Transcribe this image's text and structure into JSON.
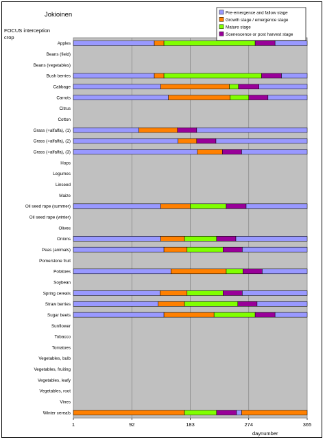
{
  "chart_data": {
    "type": "bar",
    "orientation": "horizontal",
    "stacked": true,
    "title": "Jokioinen",
    "ylabel": "FOCUS interception\ncrop",
    "xlabel": "daynumber",
    "xlim": [
      1,
      365
    ],
    "xticks": [
      1,
      92,
      183,
      274,
      365
    ],
    "grid": "vertical",
    "legend_position": "top-right",
    "series": [
      {
        "name": "Pre-emergence and fallow stage",
        "color": "#9999ff"
      },
      {
        "name": "Growth stage / emergence stage",
        "color": "#ff8000"
      },
      {
        "name": "Mature stage",
        "color": "#80ff00"
      },
      {
        "name": "Scenescence or post harvest stage",
        "color": "#990099"
      }
    ],
    "categories": [
      "Apples",
      "Beans (field)",
      "Beans (vegetables)",
      "Bush berries",
      "Cabbage",
      "Carrots",
      "Citrus",
      "Cotton",
      "Grass (+alfalfa), (1)",
      "Grass (+alfalfa), (2)",
      "Grass (+alfalfa), (3)",
      "Hops",
      "Legumes",
      "Linseed",
      "Maize",
      "Oil seed rape (summer)",
      "Oil seed rape (winter)",
      "Olives",
      "Onions",
      "Peas (animals)",
      "Pome/stone fruit",
      "Potatoes",
      "Soybean",
      "Spring cereals",
      "Straw berries",
      "Sugar beets",
      "Sunflower",
      "Tobacco",
      "Tomatoes",
      "Vegetables, bulb",
      "Vegetables, fruiting",
      "Vegetables, leafy",
      "Vegetables, root",
      "Vines",
      "Winter cereals"
    ],
    "stages": [
      {
        "crop": "Apples",
        "segments": [
          [
            1,
            "pre"
          ],
          [
            127,
            "growth"
          ],
          [
            142,
            "mature"
          ],
          [
            284,
            "senescence"
          ],
          [
            315,
            "pre"
          ],
          [
            365,
            "end"
          ]
        ]
      },
      {
        "crop": "Bush berries",
        "segments": [
          [
            1,
            "pre"
          ],
          [
            127,
            "growth"
          ],
          [
            142,
            "mature"
          ],
          [
            294,
            "senescence"
          ],
          [
            325,
            "pre"
          ],
          [
            365,
            "end"
          ]
        ]
      },
      {
        "crop": "Cabbage",
        "segments": [
          [
            1,
            "pre"
          ],
          [
            137,
            "growth"
          ],
          [
            244,
            "mature"
          ],
          [
            258,
            "senescence"
          ],
          [
            290,
            "pre"
          ],
          [
            365,
            "end"
          ]
        ]
      },
      {
        "crop": "Carrots",
        "segments": [
          [
            1,
            "pre"
          ],
          [
            149,
            "growth"
          ],
          [
            245,
            "mature"
          ],
          [
            274,
            "senescence"
          ],
          [
            304,
            "pre"
          ],
          [
            365,
            "end"
          ]
        ]
      },
      {
        "crop": "Grass (+alfalfa), (1)",
        "segments": [
          [
            1,
            "pre"
          ],
          [
            103,
            "growth"
          ],
          [
            163,
            "senescence"
          ],
          [
            193,
            "pre"
          ],
          [
            365,
            "end"
          ]
        ]
      },
      {
        "crop": "Grass (+alfalfa), (2)",
        "segments": [
          [
            1,
            "pre"
          ],
          [
            164,
            "growth"
          ],
          [
            193,
            "senescence"
          ],
          [
            223,
            "pre"
          ],
          [
            365,
            "end"
          ]
        ]
      },
      {
        "crop": "Grass (+alfalfa), (3)",
        "segments": [
          [
            1,
            "pre"
          ],
          [
            194,
            "growth"
          ],
          [
            233,
            "senescence"
          ],
          [
            263,
            "pre"
          ],
          [
            365,
            "end"
          ]
        ]
      },
      {
        "crop": "Oil seed rape (summer)",
        "segments": [
          [
            1,
            "pre"
          ],
          [
            137,
            "growth"
          ],
          [
            183,
            "mature"
          ],
          [
            239,
            "senescence"
          ],
          [
            270,
            "pre"
          ],
          [
            365,
            "end"
          ]
        ]
      },
      {
        "crop": "Onions",
        "segments": [
          [
            1,
            "pre"
          ],
          [
            137,
            "growth"
          ],
          [
            174,
            "mature"
          ],
          [
            224,
            "senescence"
          ],
          [
            254,
            "pre"
          ],
          [
            365,
            "end"
          ]
        ]
      },
      {
        "crop": "Peas (animals)",
        "segments": [
          [
            1,
            "pre"
          ],
          [
            142,
            "growth"
          ],
          [
            178,
            "mature"
          ],
          [
            234,
            "senescence"
          ],
          [
            264,
            "pre"
          ],
          [
            365,
            "end"
          ]
        ]
      },
      {
        "crop": "Potatoes",
        "segments": [
          [
            1,
            "pre"
          ],
          [
            153,
            "growth"
          ],
          [
            239,
            "mature"
          ],
          [
            265,
            "senescence"
          ],
          [
            295,
            "pre"
          ],
          [
            365,
            "end"
          ]
        ]
      },
      {
        "crop": "Spring cereals",
        "segments": [
          [
            1,
            "pre"
          ],
          [
            136,
            "growth"
          ],
          [
            178,
            "mature"
          ],
          [
            234,
            "senescence"
          ],
          [
            264,
            "pre"
          ],
          [
            365,
            "end"
          ]
        ]
      },
      {
        "crop": "Straw berries",
        "segments": [
          [
            1,
            "pre"
          ],
          [
            133,
            "growth"
          ],
          [
            174,
            "mature"
          ],
          [
            257,
            "senescence"
          ],
          [
            287,
            "pre"
          ],
          [
            365,
            "end"
          ]
        ]
      },
      {
        "crop": "Sugar beets",
        "segments": [
          [
            1,
            "pre"
          ],
          [
            142,
            "growth"
          ],
          [
            220,
            "mature"
          ],
          [
            284,
            "senescence"
          ],
          [
            315,
            "pre"
          ],
          [
            365,
            "end"
          ]
        ]
      },
      {
        "crop": "Winter cereals",
        "segments": [
          [
            1,
            "growth"
          ],
          [
            174,
            "mature"
          ],
          [
            224,
            "senescence"
          ],
          [
            255,
            "pre"
          ],
          [
            263,
            "growth"
          ],
          [
            365,
            "end"
          ]
        ]
      }
    ]
  }
}
